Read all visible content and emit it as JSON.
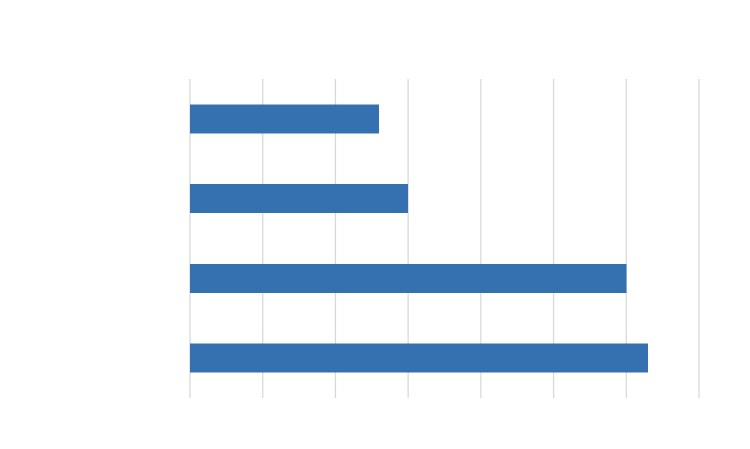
{
  "chart_data": {
    "type": "bar",
    "orientation": "horizontal",
    "categories": [
      "",
      "",
      "",
      ""
    ],
    "values": [
      2.6,
      3.0,
      6.0,
      6.3
    ],
    "xlim": [
      0,
      7
    ],
    "x_tick_step": 1,
    "grid": true,
    "legend": "none",
    "bar_color": "#3571b1",
    "gridline_color": "#d9d9d9",
    "title": "",
    "xlabel": "",
    "ylabel": ""
  }
}
